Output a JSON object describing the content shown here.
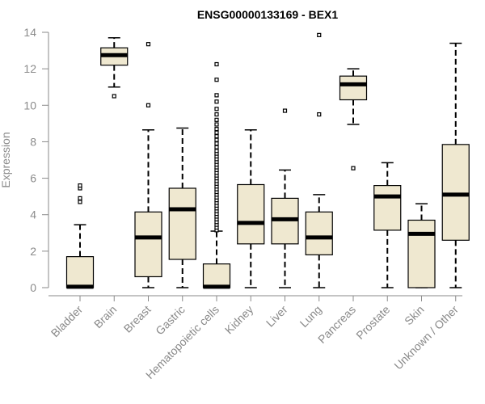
{
  "chart_data": {
    "type": "boxplot",
    "title": "ENSG00000133169 - BEX1",
    "xlabel": "",
    "ylabel": "Expression",
    "ylim": [
      0,
      14
    ],
    "yticks": [
      0,
      2,
      4,
      6,
      8,
      10,
      12,
      14
    ],
    "categories": [
      "Bladder",
      "Brain",
      "Breast",
      "Gastric",
      "Hematopoietic cells",
      "Kidney",
      "Liver",
      "Lung",
      "Pancreas",
      "Prostate",
      "Skin",
      "Unknown / Other"
    ],
    "box_color": "#efe8d0",
    "stroke_color": "#000000",
    "axis_color": "#8a8a8a",
    "boxes": [
      {
        "category": "Bladder",
        "whisker_low": 0,
        "q1": 0,
        "median": 0.05,
        "q3": 1.7,
        "whisker_high": 3.45,
        "outliers": [
          4.7,
          4.9,
          5.45,
          5.6
        ]
      },
      {
        "category": "Brain",
        "whisker_low": 11.0,
        "q1": 12.2,
        "median": 12.75,
        "q3": 13.15,
        "whisker_high": 13.7,
        "outliers": [
          10.5
        ]
      },
      {
        "category": "Breast",
        "whisker_low": 0,
        "q1": 0.6,
        "median": 2.75,
        "q3": 4.15,
        "whisker_high": 8.65,
        "outliers": [
          10.0,
          13.35
        ]
      },
      {
        "category": "Gastric",
        "whisker_low": 0,
        "q1": 1.55,
        "median": 4.3,
        "q3": 5.45,
        "whisker_high": 8.75,
        "outliers": []
      },
      {
        "category": "Hematopoietic cells",
        "whisker_low": 0,
        "q1": 0,
        "median": 0.05,
        "q3": 1.3,
        "whisker_high": 3.1,
        "outliers": [
          3.15,
          3.3,
          3.45,
          3.6,
          3.75,
          3.9,
          4.05,
          4.2,
          4.35,
          4.5,
          4.65,
          4.8,
          4.95,
          5.1,
          5.25,
          5.4,
          5.55,
          5.7,
          5.85,
          6.0,
          6.15,
          6.3,
          6.45,
          6.6,
          6.75,
          6.9,
          7.05,
          7.2,
          7.35,
          7.5,
          7.7,
          7.9,
          8.1,
          8.3,
          8.5,
          8.7,
          8.95,
          9.2,
          9.5,
          9.8,
          10.2,
          10.55,
          11.4,
          12.25
        ]
      },
      {
        "category": "Kidney",
        "whisker_low": 0,
        "q1": 2.4,
        "median": 3.55,
        "q3": 5.65,
        "whisker_high": 8.65,
        "outliers": []
      },
      {
        "category": "Liver",
        "whisker_low": 0,
        "q1": 2.4,
        "median": 3.75,
        "q3": 4.9,
        "whisker_high": 6.45,
        "outliers": [
          9.7
        ]
      },
      {
        "category": "Lung",
        "whisker_low": 0,
        "q1": 1.8,
        "median": 2.75,
        "q3": 4.15,
        "whisker_high": 5.1,
        "outliers": [
          9.5,
          13.85
        ]
      },
      {
        "category": "Pancreas",
        "whisker_low": 8.95,
        "q1": 10.3,
        "median": 11.15,
        "q3": 11.6,
        "whisker_high": 12.0,
        "outliers": [
          6.55
        ]
      },
      {
        "category": "Prostate",
        "whisker_low": 0,
        "q1": 3.15,
        "median": 5.0,
        "q3": 5.6,
        "whisker_high": 6.85,
        "outliers": []
      },
      {
        "category": "Skin",
        "whisker_low": 0,
        "q1": 0,
        "median": 2.95,
        "q3": 3.7,
        "whisker_high": 4.6,
        "outliers": []
      },
      {
        "category": "Unknown / Other",
        "whisker_low": 0,
        "q1": 2.6,
        "median": 5.1,
        "q3": 7.85,
        "whisker_high": 13.4,
        "outliers": []
      }
    ]
  }
}
